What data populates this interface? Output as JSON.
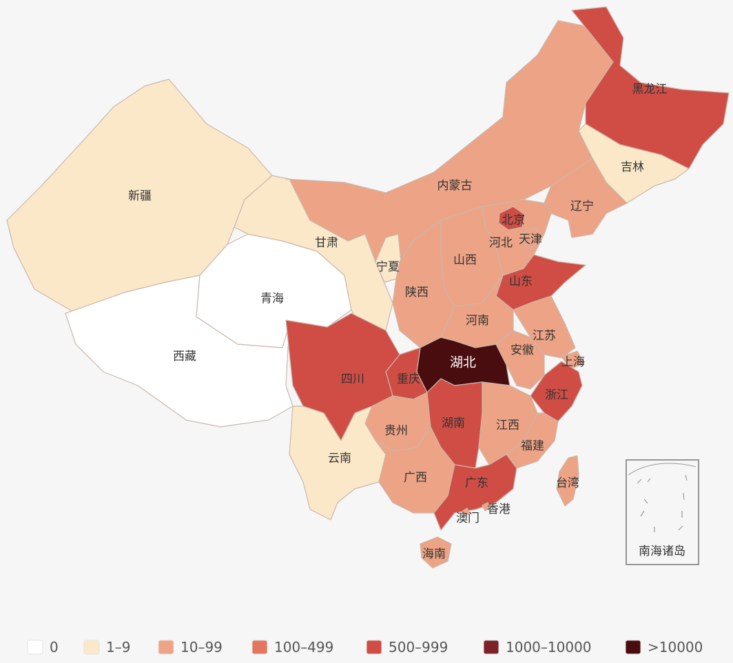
{
  "colors": {
    "c0": "#ffffff",
    "c1": "#fbe8c9",
    "c2": "#eda385",
    "c3": "#e3765f",
    "c4": "#cf4d45",
    "c5": "#7d2228",
    "c6": "#4a0d0f"
  },
  "legend": [
    {
      "label": "0",
      "color": "#ffffff"
    },
    {
      "label": "1–9",
      "color": "#fbe8c9"
    },
    {
      "label": "10–99",
      "color": "#eda385"
    },
    {
      "label": "100–499",
      "color": "#e3765f"
    },
    {
      "label": "500–999",
      "color": "#cf4d45"
    },
    {
      "label": "1000–10000",
      "color": "#7d2228"
    },
    {
      "label": ">10000",
      "color": "#4a0d0f"
    }
  ],
  "provinces": {
    "xinjiang": {
      "name": "新疆",
      "level": "1–9"
    },
    "xizang": {
      "name": "西藏",
      "level": "0"
    },
    "qinghai": {
      "name": "青海",
      "level": "0"
    },
    "gansu": {
      "name": "甘肃",
      "level": "1–9"
    },
    "neimenggu": {
      "name": "内蒙古",
      "level": "10–99"
    },
    "heilongjiang": {
      "name": "黑龙江",
      "level": "500–999"
    },
    "jilin": {
      "name": "吉林",
      "level": "1–9"
    },
    "liaoning": {
      "name": "辽宁",
      "level": "10–99"
    },
    "beijing": {
      "name": "北京",
      "level": "500–999"
    },
    "tianjin": {
      "name": "天津",
      "level": "10–99"
    },
    "hebei": {
      "name": "河北",
      "level": "10–99"
    },
    "shanxi": {
      "name": "山西",
      "level": "10–99"
    },
    "ningxia": {
      "name": "宁夏",
      "level": "1–9"
    },
    "shaanxi": {
      "name": "陕西",
      "level": "10–99"
    },
    "shandong": {
      "name": "山东",
      "level": "500–999"
    },
    "henan": {
      "name": "河南",
      "level": "10–99"
    },
    "jiangsu": {
      "name": "江苏",
      "level": "10–99"
    },
    "anhui": {
      "name": "安徽",
      "level": "10–99"
    },
    "shanghai": {
      "name": "上海",
      "level": "10–99"
    },
    "hubei": {
      "name": "湖北",
      "level": ">10000"
    },
    "sichuan": {
      "name": "四川",
      "level": "500–999"
    },
    "chongqing": {
      "name": "重庆",
      "level": "500–999"
    },
    "zhejiang": {
      "name": "浙江",
      "level": "500–999"
    },
    "guizhou": {
      "name": "贵州",
      "level": "10–99"
    },
    "hunan": {
      "name": "湖南",
      "level": "500–999"
    },
    "jiangxi": {
      "name": "江西",
      "level": "10–99"
    },
    "fujian": {
      "name": "福建",
      "level": "10–99"
    },
    "yunnan": {
      "name": "云南",
      "level": "1–9"
    },
    "guangxi": {
      "name": "广西",
      "level": "10–99"
    },
    "guangdong": {
      "name": "广东",
      "level": "500–999"
    },
    "taiwan": {
      "name": "台湾",
      "level": "10–99"
    },
    "hongkong": {
      "name": "香港",
      "level": "10–99"
    },
    "macau": {
      "name": "澳门",
      "level": "10–99"
    },
    "hainan": {
      "name": "海南",
      "level": "10–99"
    }
  },
  "inset_label": "南海诸岛"
}
